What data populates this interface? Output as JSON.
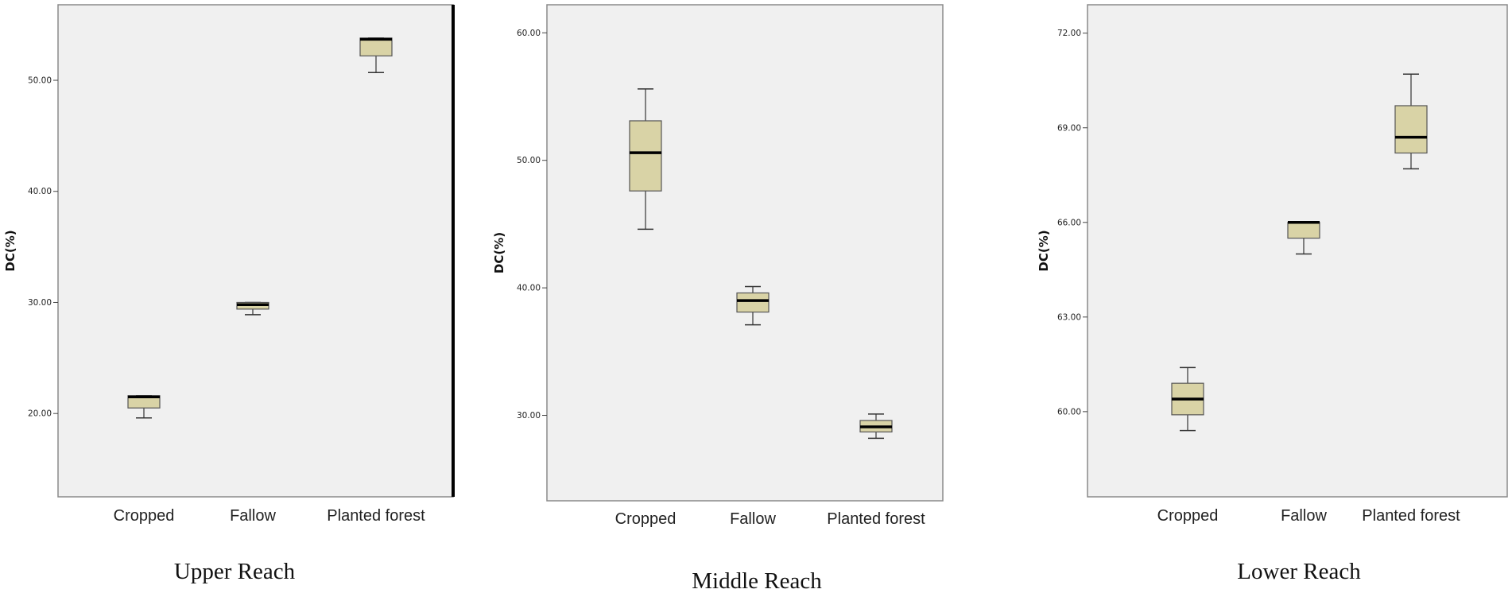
{
  "chart_data": [
    {
      "type": "boxplot",
      "title": "Upper Reach",
      "ylabel": "DC(%)",
      "categories": [
        "Cropped",
        "Fallow",
        "Planted forest"
      ],
      "yticks": [
        "20.00",
        "30.00",
        "40.00",
        "50.00"
      ],
      "ylim": [
        12.5,
        56.8
      ],
      "boxes": [
        {
          "min": 19.6,
          "q1": 20.5,
          "median": 21.5,
          "q3": 21.6,
          "max": 21.6
        },
        {
          "min": 28.9,
          "q1": 29.4,
          "median": 29.8,
          "q3": 30.0,
          "max": 30.0
        },
        {
          "min": 50.7,
          "q1": 52.2,
          "median": 53.7,
          "q3": 53.8,
          "max": 53.8
        }
      ],
      "box_color": "#d9d3a6",
      "background": "#f0f0f0",
      "grid": false
    },
    {
      "type": "boxplot",
      "title": "Middle Reach",
      "ylabel": "DC(%)",
      "categories": [
        "Cropped",
        "Fallow",
        "Planted forest"
      ],
      "yticks": [
        "30.00",
        "40.00",
        "50.00",
        "60.00"
      ],
      "ylim": [
        23.3,
        62.2
      ],
      "boxes": [
        {
          "min": 44.6,
          "q1": 47.6,
          "median": 50.6,
          "q3": 53.1,
          "max": 55.6
        },
        {
          "min": 37.1,
          "q1": 38.1,
          "median": 39.0,
          "q3": 39.6,
          "max": 40.1
        },
        {
          "min": 28.2,
          "q1": 28.7,
          "median": 29.1,
          "q3": 29.6,
          "max": 30.1
        }
      ],
      "box_color": "#d9d3a6",
      "background": "#f0f0f0",
      "grid": false
    },
    {
      "type": "boxplot",
      "title": "Lower Reach",
      "ylabel": "DC(%)",
      "categories": [
        "Cropped",
        "Fallow",
        "Planted forest"
      ],
      "yticks": [
        "60.00",
        "63.00",
        "66.00",
        "69.00",
        "72.00"
      ],
      "ylim": [
        57.3,
        72.9
      ],
      "boxes": [
        {
          "min": 59.4,
          "q1": 59.9,
          "median": 60.4,
          "q3": 60.9,
          "max": 61.4
        },
        {
          "min": 65.0,
          "q1": 65.5,
          "median": 66.0,
          "q3": 66.0,
          "max": 66.0
        },
        {
          "min": 67.7,
          "q1": 68.2,
          "median": 68.7,
          "q3": 69.7,
          "max": 70.7
        }
      ],
      "box_color": "#d9d3a6",
      "background": "#f0f0f0",
      "grid": false
    }
  ]
}
